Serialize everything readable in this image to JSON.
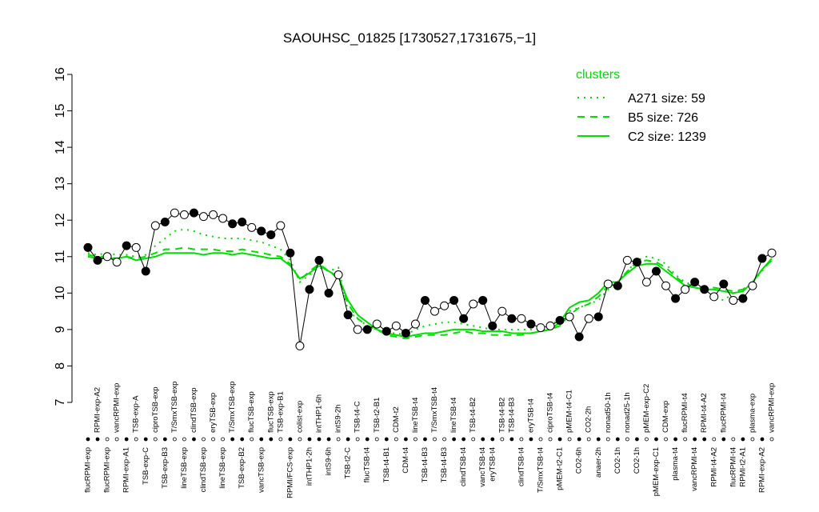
{
  "chart_data": {
    "type": "line",
    "title": "SAOUHSC_01825 [1730527,1731675,−1]",
    "legend_title": "clusters",
    "ylim": [
      7,
      16
    ],
    "yticks": [
      7,
      8,
      9,
      10,
      11,
      12,
      13,
      14,
      15,
      16
    ],
    "categories": [
      "flucRPMI-exp",
      "RPMI-exp-A2",
      "flucRPMI-exp",
      "vancRPMI-exp",
      "RPMI-exp-A1",
      "TSB-exp-A",
      "TSB-exp-C",
      "ciproTSB-exp",
      "TSB-exp-B3",
      "T/SmxTSB-exp",
      "lineTSB-exp",
      "clindTSB-exp",
      "clindTSB-exp",
      "eryTSB-exp",
      "lineTSB-exp",
      "T/SmxTSB-exp",
      "TSB-exp-B2",
      "flucTSB-exp",
      "vancTSB-exp",
      "flucTSB-exp",
      "TSB-exp-B1",
      "RPMI/FCS-exp",
      "colist-exp",
      "intTHP1-2h",
      "intTHP1-6h",
      "intS9-6h",
      "intS9-2h",
      "TSB-t2-C",
      "TSB-t4-C",
      "flucTSB-t4",
      "TSB-t2-B1",
      "TSB-t4-B1",
      "CDM-t2",
      "CDM-t4",
      "lineTSB-t4",
      "TSB-t4-B3",
      "T/SmxTSB-t4",
      "TSB-t4-B3",
      "lineTSB-t4",
      "clindTSB-t4",
      "TSB-t4-B2",
      "vancTSB-t4",
      "eryTSB-t4",
      "TSB-t4-B2",
      "TSB-t4-B3",
      "clindTSB-t4",
      "eryTSB-t4",
      "T/SmxTSB-t4",
      "ciproTSB-t4",
      "pMEM-t2-C1",
      "pMEM-t4-C1",
      "CO2-6h",
      "CO2-2h",
      "anaer-2h",
      "nonad50-1h",
      "CO2-1h",
      "nonad25-1h",
      "CO2-1h",
      "pMEM-exp-C2",
      "pMEM-exp-C1",
      "CDM-exp",
      "plasma-t4",
      "flucRPMI-t4",
      "vancRPMI-t4",
      "RPMI-t4-A2",
      "RPMI-t4-A2",
      "flucRPMI-t4",
      "flucRPMI-t4",
      "RPMI-t2-A1",
      "plasma-exp",
      "RPMI-exp-A2",
      "vancRPMI-exp"
    ],
    "label_positions": [
      "bottom",
      "top",
      "bottom",
      "top",
      "bottom",
      "top",
      "bottom",
      "top",
      "bottom",
      "top",
      "bottom",
      "top",
      "bottom",
      "top",
      "bottom",
      "top",
      "bottom",
      "top",
      "bottom",
      "top",
      "top",
      "bottom",
      "top",
      "bottom",
      "top",
      "bottom",
      "top",
      "bottom",
      "top",
      "bottom",
      "top",
      "bottom",
      "top",
      "bottom",
      "top",
      "bottom",
      "top",
      "bottom",
      "top",
      "bottom",
      "top",
      "bottom",
      "bottom",
      "top",
      "top",
      "bottom",
      "top",
      "bottom",
      "top",
      "bottom",
      "top",
      "bottom",
      "top",
      "bottom",
      "top",
      "bottom",
      "top",
      "bottom",
      "top",
      "bottom",
      "top",
      "bottom",
      "top",
      "bottom",
      "top",
      "bottom",
      "top",
      "bottom",
      "bottom",
      "top",
      "bottom",
      "top"
    ],
    "values": [
      11.25,
      10.9,
      11.0,
      10.85,
      11.3,
      11.25,
      10.6,
      11.85,
      11.95,
      12.2,
      12.15,
      12.2,
      12.1,
      12.15,
      12.05,
      11.9,
      11.95,
      11.8,
      11.7,
      11.6,
      11.85,
      11.1,
      8.55,
      10.1,
      10.9,
      10.0,
      10.5,
      9.4,
      9.0,
      9.0,
      9.15,
      8.95,
      9.1,
      8.9,
      9.15,
      9.8,
      9.5,
      9.65,
      9.8,
      9.3,
      9.7,
      9.8,
      9.1,
      9.5,
      9.3,
      9.3,
      9.15,
      9.05,
      9.1,
      9.25,
      9.35,
      8.8,
      9.3,
      9.35,
      10.25,
      10.2,
      10.9,
      10.85,
      10.3,
      10.6,
      10.2,
      9.85,
      10.1,
      10.3,
      10.1,
      9.9,
      10.25,
      9.8,
      9.85,
      10.2,
      10.95,
      11.1
    ],
    "point_fills": [
      "black",
      "black",
      "white",
      "white",
      "black",
      "white",
      "black",
      "white",
      "black",
      "white",
      "white",
      "black",
      "white",
      "white",
      "white",
      "black",
      "black",
      "white",
      "black",
      "black",
      "white",
      "black",
      "white",
      "black",
      "black",
      "black",
      "white",
      "black",
      "white",
      "black",
      "white",
      "black",
      "white",
      "black",
      "white",
      "black",
      "white",
      "white",
      "black",
      "black",
      "white",
      "black",
      "black",
      "white",
      "black",
      "white",
      "black",
      "white",
      "white",
      "black",
      "white",
      "black",
      "white",
      "black",
      "white",
      "black",
      "white",
      "black",
      "white",
      "black",
      "white",
      "black",
      "white",
      "black",
      "black",
      "white",
      "black",
      "white",
      "black",
      "white",
      "black",
      "white"
    ],
    "series": [
      {
        "name": "A271 size: 59",
        "color": "#00e000",
        "style": "dotted",
        "values": [
          11.1,
          11.05,
          11.1,
          11.05,
          11.05,
          11.0,
          11.05,
          11.3,
          11.5,
          11.7,
          11.75,
          11.7,
          11.6,
          11.55,
          11.5,
          11.5,
          11.5,
          11.45,
          11.4,
          11.3,
          11.2,
          10.9,
          10.3,
          10.5,
          10.7,
          10.6,
          10.7,
          9.5,
          9.3,
          9.1,
          9.0,
          8.9,
          8.9,
          8.85,
          9.0,
          9.1,
          9.15,
          9.2,
          9.2,
          9.15,
          9.1,
          9.05,
          9.0,
          9.0,
          9.0,
          9.0,
          9.0,
          9.0,
          9.1,
          9.3,
          9.5,
          9.6,
          9.7,
          9.8,
          10.1,
          10.3,
          10.6,
          10.9,
          11.0,
          10.95,
          10.8,
          10.5,
          10.3,
          10.2,
          10.1,
          9.9,
          9.8,
          10.0,
          10.1,
          10.3,
          10.6,
          10.95
        ]
      },
      {
        "name": "B5 size: 726",
        "color": "#00e000",
        "style": "dashed",
        "values": [
          11.05,
          11.0,
          11.0,
          10.95,
          11.0,
          10.95,
          11.0,
          11.1,
          11.2,
          11.2,
          11.25,
          11.2,
          11.2,
          11.2,
          11.15,
          11.15,
          11.2,
          11.15,
          11.1,
          11.05,
          11.0,
          10.8,
          10.35,
          10.6,
          10.8,
          10.6,
          10.4,
          9.7,
          9.3,
          9.1,
          9.0,
          8.85,
          8.8,
          8.75,
          8.8,
          8.85,
          8.85,
          8.85,
          8.9,
          8.95,
          8.9,
          8.9,
          8.85,
          8.85,
          8.85,
          8.85,
          8.9,
          8.95,
          9.0,
          9.1,
          9.4,
          9.6,
          9.7,
          9.9,
          10.2,
          10.3,
          10.6,
          10.85,
          10.9,
          10.85,
          10.7,
          10.45,
          10.25,
          10.2,
          10.15,
          10.15,
          10.1,
          10.05,
          10.1,
          10.3,
          10.65,
          10.9
        ]
      },
      {
        "name": "C2 size: 1239",
        "color": "#00e000",
        "style": "solid",
        "values": [
          11.0,
          10.95,
          10.95,
          10.95,
          11.0,
          10.9,
          10.95,
          11.0,
          11.1,
          11.1,
          11.1,
          11.1,
          11.05,
          11.1,
          11.1,
          11.05,
          11.1,
          11.05,
          11.0,
          10.95,
          10.95,
          10.75,
          10.4,
          10.55,
          10.75,
          10.6,
          10.45,
          9.8,
          9.4,
          9.2,
          9.0,
          8.9,
          8.85,
          8.8,
          8.85,
          8.9,
          8.9,
          8.95,
          9.0,
          9.0,
          9.0,
          8.95,
          8.95,
          8.95,
          8.9,
          8.9,
          8.9,
          8.95,
          9.0,
          9.2,
          9.6,
          9.75,
          9.8,
          10.0,
          10.3,
          10.3,
          10.55,
          10.75,
          10.8,
          10.8,
          10.6,
          10.4,
          10.2,
          10.15,
          10.1,
          10.1,
          10.05,
          10.0,
          10.05,
          10.3,
          10.65,
          10.95
        ]
      }
    ]
  }
}
